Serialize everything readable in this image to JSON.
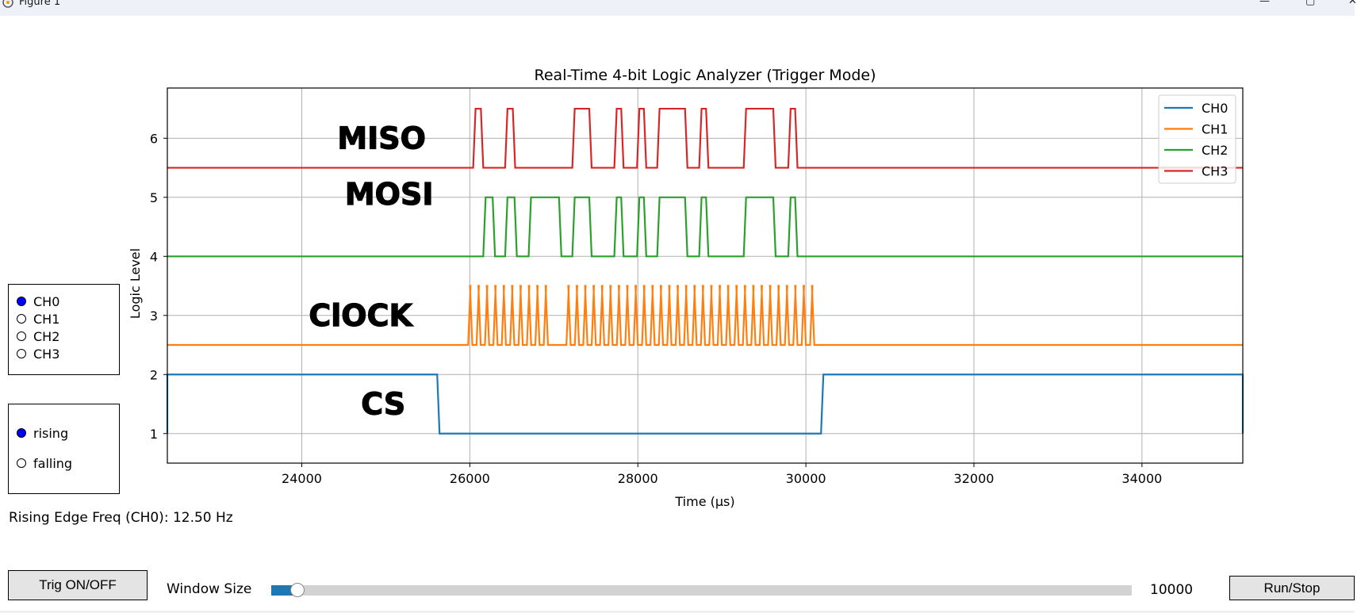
{
  "window": {
    "title": "Figure 1"
  },
  "chart_data": {
    "type": "line",
    "title": "Real-Time 4-bit Logic Analyzer (Trigger Mode)",
    "xlabel": "Time (µs)",
    "ylabel": "Logic Level",
    "xlim": [
      22400,
      35200
    ],
    "ylim": [
      0.5,
      6.85
    ],
    "xticks": [
      24000,
      26000,
      28000,
      30000,
      32000,
      34000
    ],
    "yticks": [
      1,
      2,
      3,
      4,
      5,
      6
    ],
    "grid": true,
    "legend_position": "top-right",
    "colors": {
      "CH0": "#1f77b4",
      "CH1": "#ff7f0e",
      "CH2": "#2ca02c",
      "CH3": "#d62728"
    },
    "series": [
      {
        "name": "CH0",
        "base": 1,
        "high_edges": [
          [
            22400,
            25640
          ],
          [
            30180,
            35200
          ]
        ]
      },
      {
        "name": "CH1",
        "base": 2.5,
        "clock_bursts": [
          {
            "start": 25980,
            "end": 26990,
            "period": 100
          },
          {
            "start": 27150,
            "end": 30140,
            "period": 100
          }
        ]
      },
      {
        "name": "CH2",
        "base": 4,
        "high_edges": [
          [
            26160,
            26300
          ],
          [
            26420,
            26560
          ],
          [
            26700,
            27090
          ],
          [
            27220,
            27450
          ],
          [
            27720,
            27830
          ],
          [
            27990,
            28100
          ],
          [
            28230,
            28590
          ],
          [
            28730,
            28840
          ],
          [
            29260,
            29640
          ],
          [
            29790,
            29900
          ]
        ]
      },
      {
        "name": "CH3",
        "base": 5.5,
        "high_edges": [
          [
            26040,
            26160
          ],
          [
            26420,
            26540
          ],
          [
            27220,
            27450
          ],
          [
            27720,
            27830
          ],
          [
            27990,
            28100
          ],
          [
            28230,
            28590
          ],
          [
            28730,
            28840
          ],
          [
            29260,
            29640
          ],
          [
            29790,
            29900
          ]
        ]
      }
    ],
    "annotations": [
      {
        "text": "MISO",
        "x": 24950,
        "y": 6
      },
      {
        "text": "MOSI",
        "x": 25040,
        "y": 5.05
      },
      {
        "text": "ClOCK",
        "x": 24700,
        "y": 3
      },
      {
        "text": "CS",
        "x": 24970,
        "y": 1.5
      }
    ]
  },
  "channel_select": {
    "options": [
      "CH0",
      "CH1",
      "CH2",
      "CH3"
    ],
    "selected": "CH0"
  },
  "edge_select": {
    "options": [
      "rising",
      "falling"
    ],
    "selected": "rising"
  },
  "status": {
    "freq_text": "Rising Edge Freq (CH0): 12.50 Hz"
  },
  "controls": {
    "trig_label": "Trig ON/OFF",
    "window_label": "Window Size",
    "window_value": "10000",
    "window_fraction": 0.02,
    "run_stop_label": "Run/Stop"
  }
}
